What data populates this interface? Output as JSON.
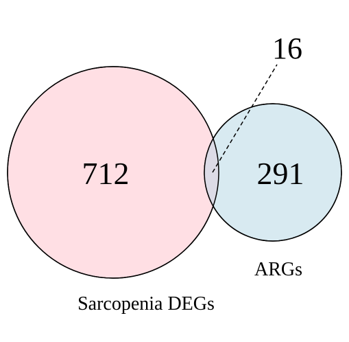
{
  "venn": {
    "sets": [
      {
        "label": "Sarcopenia DEGs",
        "count": "712",
        "color": "#ffdfe4"
      },
      {
        "label": "ARGs",
        "count": "291",
        "color": "#d8eaf1"
      }
    ],
    "intersection": {
      "count": "16",
      "color": "#dcdbe6"
    },
    "stroke_color": "#000000"
  }
}
